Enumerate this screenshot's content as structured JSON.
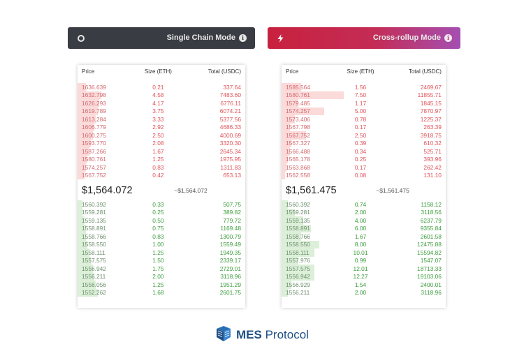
{
  "modes": {
    "single": {
      "label": "Single Chain Mode",
      "icon": "ring-icon",
      "info_icon": "info-icon",
      "color": "#393c42"
    },
    "cross": {
      "label": "Cross-rollup Mode",
      "icon": "lightning-icon",
      "info_icon": "info-icon",
      "color": "#c8213e"
    }
  },
  "columns": {
    "price": "Price",
    "size": "Size (ETH)",
    "total": "Total (USDC)"
  },
  "left_book": {
    "asks": [
      {
        "price": "1636.639",
        "size": "0.21",
        "total": "337.64",
        "depth": 0.05
      },
      {
        "price": "1632.798",
        "size": "4.58",
        "total": "7483.60",
        "depth": 0.14
      },
      {
        "price": "1626.293",
        "size": "4.17",
        "total": "6776.11",
        "depth": 0.13
      },
      {
        "price": "1619.789",
        "size": "3.75",
        "total": "6074.21",
        "depth": 0.12
      },
      {
        "price": "1613.284",
        "size": "3.33",
        "total": "5377.56",
        "depth": 0.11
      },
      {
        "price": "1606.779",
        "size": "2.92",
        "total": "4686.33",
        "depth": 0.1
      },
      {
        "price": "1600.275",
        "size": "2.50",
        "total": "4000.69",
        "depth": 0.09
      },
      {
        "price": "1593.770",
        "size": "2.08",
        "total": "3320.30",
        "depth": 0.08
      },
      {
        "price": "1587.266",
        "size": "1.67",
        "total": "2645.34",
        "depth": 0.07
      },
      {
        "price": "1580.761",
        "size": "1.25",
        "total": "1975.95",
        "depth": 0.06
      },
      {
        "price": "1574.257",
        "size": "0.83",
        "total": "1311.83",
        "depth": 0.05
      },
      {
        "price": "1567.752",
        "size": "0.42",
        "total": "653.13",
        "depth": 0.04
      }
    ],
    "mid_price": "$1,564.072",
    "mid_approx": "~$1,564.072",
    "bids": [
      {
        "price": "1560.392",
        "size": "0.33",
        "total": "507.75",
        "depth": 0.03
      },
      {
        "price": "1559.281",
        "size": "0.25",
        "total": "389.82",
        "depth": 0.03
      },
      {
        "price": "1559.135",
        "size": "0.50",
        "total": "779.72",
        "depth": 0.04
      },
      {
        "price": "1558.891",
        "size": "0.75",
        "total": "1169.48",
        "depth": 0.05
      },
      {
        "price": "1558.766",
        "size": "0.83",
        "total": "1300.79",
        "depth": 0.05
      },
      {
        "price": "1558.550",
        "size": "1.00",
        "total": "1559.49",
        "depth": 0.06
      },
      {
        "price": "1558.111",
        "size": "1.25",
        "total": "1949.35",
        "depth": 0.07
      },
      {
        "price": "1557.575",
        "size": "1.50",
        "total": "2339.17",
        "depth": 0.08
      },
      {
        "price": "1556.942",
        "size": "1.75",
        "total": "2729.01",
        "depth": 0.09
      },
      {
        "price": "1556.211",
        "size": "2.00",
        "total": "3118.96",
        "depth": 0.1
      },
      {
        "price": "1556.056",
        "size": "1.25",
        "total": "1951.29",
        "depth": 0.11
      },
      {
        "price": "1552.262",
        "size": "1.68",
        "total": "2601.75",
        "depth": 0.12
      }
    ]
  },
  "right_book": {
    "asks": [
      {
        "price": "1585.564",
        "size": "1.56",
        "total": "2469.67",
        "depth": 0.12
      },
      {
        "price": "1580.761",
        "size": "7.50",
        "total": "11855.71",
        "depth": 0.38
      },
      {
        "price": "1579.485",
        "size": "1.17",
        "total": "1845.15",
        "depth": 0.1
      },
      {
        "price": "1574.257",
        "size": "5.00",
        "total": "7870.97",
        "depth": 0.26
      },
      {
        "price": "1573.406",
        "size": "0.78",
        "total": "1225.37",
        "depth": 0.08
      },
      {
        "price": "1567.798",
        "size": "0.17",
        "total": "263.39",
        "depth": 0.05
      },
      {
        "price": "1567.752",
        "size": "2.50",
        "total": "3918.75",
        "depth": 0.15
      },
      {
        "price": "1567.327",
        "size": "0.39",
        "total": "610.32",
        "depth": 0.06
      },
      {
        "price": "1566.488",
        "size": "0.34",
        "total": "525.71",
        "depth": 0.05
      },
      {
        "price": "1565.178",
        "size": "0.25",
        "total": "393.96",
        "depth": 0.04
      },
      {
        "price": "1563.868",
        "size": "0.17",
        "total": "262.42",
        "depth": 0.03
      },
      {
        "price": "1562.558",
        "size": "0.08",
        "total": "131.10",
        "depth": 0.02
      }
    ],
    "mid_price": "$1,561.475",
    "mid_approx": "~$1,561.475",
    "bids": [
      {
        "price": "1560.392",
        "size": "0.74",
        "total": "1158.12",
        "depth": 0.04
      },
      {
        "price": "1559.281",
        "size": "2.00",
        "total": "3118.56",
        "depth": 0.08
      },
      {
        "price": "1559.135",
        "size": "4.00",
        "total": "6237.79",
        "depth": 0.13
      },
      {
        "price": "1558.891",
        "size": "6.00",
        "total": "9355.84",
        "depth": 0.18
      },
      {
        "price": "1558.766",
        "size": "1.67",
        "total": "2601.58",
        "depth": 0.12
      },
      {
        "price": "1558.550",
        "size": "8.00",
        "total": "12475.88",
        "depth": 0.23
      },
      {
        "price": "1558.111",
        "size": "10.01",
        "total": "15594.82",
        "depth": 0.2
      },
      {
        "price": "1557.976",
        "size": "0.99",
        "total": "1547.07",
        "depth": 0.1
      },
      {
        "price": "1557.575",
        "size": "12.01",
        "total": "18713.33",
        "depth": 0.2
      },
      {
        "price": "1556.942",
        "size": "12.27",
        "total": "19103.06",
        "depth": 0.2
      },
      {
        "price": "1556.929",
        "size": "1.54",
        "total": "2400.01",
        "depth": 0.06
      },
      {
        "price": "1556.211",
        "size": "2.00",
        "total": "3118.96",
        "depth": 0.04
      }
    ]
  },
  "brand": {
    "name_bold": "MES",
    "name_rest": " Protocol",
    "logo": "mes-logo-icon",
    "color": "#1f4f86"
  }
}
